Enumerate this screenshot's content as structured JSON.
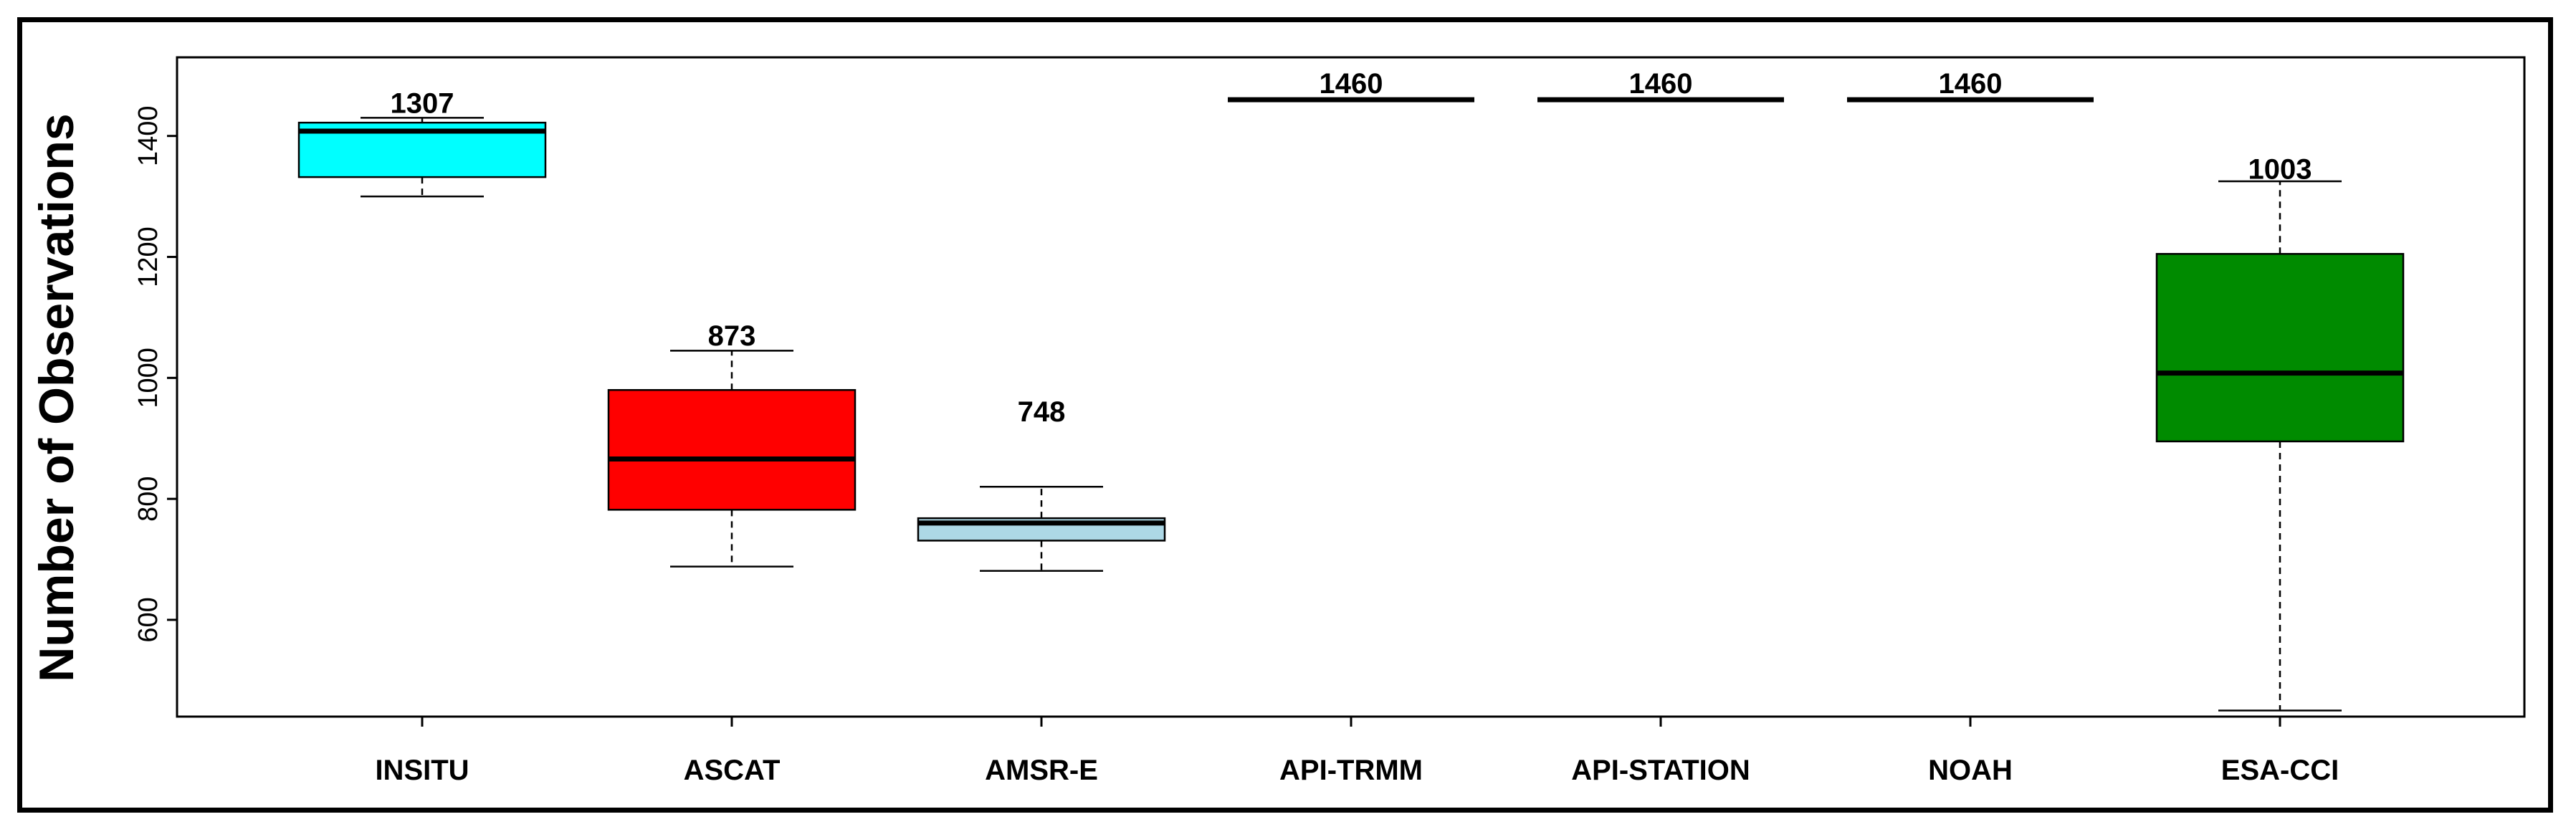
{
  "chart_data": {
    "type": "boxplot",
    "title": "",
    "xlabel": "",
    "ylabel": "Number of Observations",
    "ylim": [
      440,
      1530
    ],
    "yticks": [
      600,
      800,
      1000,
      1200,
      1400
    ],
    "grid": false,
    "legend": "none",
    "categories": [
      "INSITU",
      "ASCAT",
      "AMSR-E",
      "API-TRMM",
      "API-STATION",
      "NOAH",
      "ESA-CCI"
    ],
    "boxes": [
      {
        "category": "INSITU",
        "whisker_low": 1300,
        "q1": 1332,
        "median": 1408,
        "q3": 1422,
        "whisker_high": 1430,
        "color": "#00FFFF",
        "annotation": "1307"
      },
      {
        "category": "ASCAT",
        "whisker_low": 688,
        "q1": 782,
        "median": 866,
        "q3": 980,
        "whisker_high": 1045,
        "color": "#FF0000",
        "annotation": "873"
      },
      {
        "category": "AMSR-E",
        "whisker_low": 681,
        "q1": 731,
        "median": 760,
        "q3": 768,
        "whisker_high": 820,
        "color": "#ADD8E6",
        "annotation": "748"
      },
      {
        "category": "API-TRMM",
        "whisker_low": 1460,
        "q1": 1460,
        "median": 1460,
        "q3": 1460,
        "whisker_high": 1460,
        "color": "#FFFFFF",
        "annotation": "1460"
      },
      {
        "category": "API-STATION",
        "whisker_low": 1460,
        "q1": 1460,
        "median": 1460,
        "q3": 1460,
        "whisker_high": 1460,
        "color": "#FFFFFF",
        "annotation": "1460"
      },
      {
        "category": "NOAH",
        "whisker_low": 1460,
        "q1": 1460,
        "median": 1460,
        "q3": 1460,
        "whisker_high": 1460,
        "color": "#FFFFFF",
        "annotation": "1460"
      },
      {
        "category": "ESA-CCI",
        "whisker_low": 450,
        "q1": 895,
        "median": 1008,
        "q3": 1205,
        "whisker_high": 1325,
        "color": "#008B00",
        "annotation": "1003"
      }
    ],
    "annotation_values": [
      1438,
      1054,
      928,
      1471,
      1471,
      1471,
      1329
    ]
  }
}
